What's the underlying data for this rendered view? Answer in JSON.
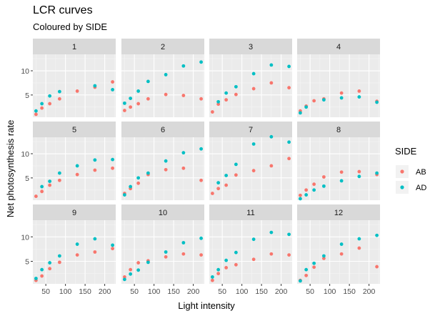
{
  "title": "LCR curves",
  "subtitle": "Coloured by SIDE",
  "colors": {
    "AB": "#F8766D",
    "AD": "#00BFC4",
    "panel_bg": "#EBEBEB",
    "strip_bg": "#D9D9D9",
    "grid_major": "#FFFFFF",
    "grid_minor": "#F5F5F5",
    "axis_text": "#4D4D4D"
  },
  "chart_data": {
    "type": "scatter",
    "facet_by": "panel",
    "xlabel": "Light intensity",
    "ylabel": "Net photosynthesis rate",
    "xlim": [
      17,
      228
    ],
    "ylim": [
      0.4,
      13.4
    ],
    "x_ticks": [
      50,
      100,
      150,
      200
    ],
    "x_ticks_minor": [
      25,
      75,
      125,
      175,
      225
    ],
    "y_ticks": [
      5,
      10
    ],
    "y_ticks_minor": [
      2.5,
      7.5,
      12.5
    ],
    "x_values": [
      25,
      40,
      60,
      85,
      130,
      175,
      220
    ],
    "legend": {
      "title": "SIDE",
      "position": "right",
      "entries": [
        "AB",
        "AD"
      ]
    },
    "panels": [
      {
        "label": "1",
        "AB": [
          1.0,
          2.3,
          3.2,
          4.2,
          5.8,
          6.6,
          7.7
        ],
        "AD": [
          1.7,
          3.2,
          4.8,
          5.7,
          null,
          6.9,
          6.1
        ]
      },
      {
        "label": "2",
        "AB": [
          1.8,
          2.5,
          3.2,
          4.2,
          5.1,
          4.9,
          4.2
        ],
        "AD": [
          3.3,
          4.3,
          5.8,
          7.8,
          9.2,
          11.0,
          11.8
        ]
      },
      {
        "label": "3",
        "AB": [
          1.5,
          3.1,
          4.0,
          5.1,
          6.3,
          7.5,
          6.5
        ],
        "AD": [
          null,
          3.6,
          5.4,
          6.7,
          9.4,
          11.2,
          10.9
        ]
      },
      {
        "label": "4",
        "AB": [
          1.7,
          2.7,
          3.8,
          4.2,
          5.4,
          5.8,
          3.7
        ],
        "AD": [
          1.3,
          2.5,
          null,
          4.0,
          4.4,
          4.6,
          3.5
        ]
      },
      {
        "label": "5",
        "AB": [
          1.2,
          2.2,
          3.5,
          4.5,
          5.7,
          6.6,
          7.0
        ],
        "AD": [
          null,
          3.2,
          4.3,
          6.0,
          7.5,
          8.7,
          8.8
        ]
      },
      {
        "label": "6",
        "AB": [
          1.8,
          2.8,
          3.9,
          5.7,
          6.7,
          7.0,
          4.5
        ],
        "AD": [
          1.5,
          3.2,
          5.0,
          6.0,
          8.5,
          10.2,
          11.0
        ]
      },
      {
        "label": "7",
        "AB": [
          1.8,
          2.8,
          3.5,
          5.6,
          6.5,
          7.5,
          9.0
        ],
        "AD": [
          null,
          4.0,
          5.5,
          7.8,
          12.0,
          13.5,
          12.4
        ]
      },
      {
        "label": "8",
        "AB": [
          1.4,
          2.5,
          3.7,
          5.2,
          6.2,
          6.3,
          5.7
        ],
        "AD": [
          0.7,
          1.5,
          2.5,
          3.3,
          4.4,
          5.3,
          6.0
        ]
      },
      {
        "label": "9",
        "AB": [
          1.1,
          2.0,
          3.5,
          4.8,
          6.3,
          6.9,
          7.6
        ],
        "AD": [
          1.5,
          3.3,
          4.7,
          6.1,
          8.5,
          9.6,
          8.3
        ]
      },
      {
        "label": "10",
        "AB": [
          1.8,
          3.3,
          4.7,
          5.1,
          5.9,
          6.5,
          6.3
        ],
        "AD": [
          1.3,
          2.4,
          3.2,
          4.8,
          6.9,
          8.8,
          9.7
        ]
      },
      {
        "label": "11",
        "AB": [
          1.1,
          2.5,
          3.7,
          4.3,
          5.4,
          6.5,
          6.3
        ],
        "AD": [
          1.8,
          3.3,
          5.2,
          6.8,
          9.5,
          10.9,
          10.5
        ]
      },
      {
        "label": "12",
        "AB": [
          1.1,
          2.1,
          3.8,
          5.6,
          6.5,
          7.7,
          3.9
        ],
        "AD": [
          1.0,
          3.3,
          4.6,
          6.1,
          8.5,
          9.6,
          10.3
        ]
      }
    ]
  }
}
